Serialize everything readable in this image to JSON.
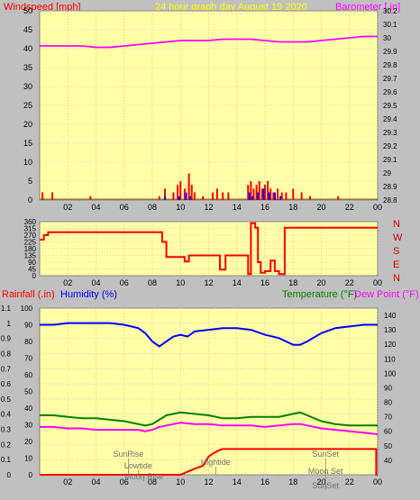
{
  "header": {
    "wind_label": "Windspeed [mph]",
    "title": "24 hour graph day   August 19 2020",
    "baro_label": "Barometer [.in]"
  },
  "dir_labels": [
    "N",
    "W",
    "S",
    "E",
    "N"
  ],
  "bottom_header": {
    "rain_label": "Rainfall (.in)",
    "humidity_label": "Humidity (%)",
    "temp_label": "Temperature (°F)",
    "dew_label": "Dew Point (°F)"
  },
  "colors": {
    "panel_bg": "#ffffa8",
    "grid": "#e6a0a0",
    "wind": "#ff0000",
    "gust": "#0000ff",
    "barometer": "#ff00ff",
    "direction": "#ff0000",
    "humidity": "#0000ff",
    "temperature": "#008000",
    "dewpoint": "#ff00ff",
    "rain": "#ff0000",
    "title_yellow": "#ffff00",
    "temp_green": "#008000"
  },
  "chart_data": [
    {
      "type": "line",
      "title": "24 hour graph day   August 19 2020",
      "x_ticks": [
        "02",
        "04",
        "06",
        "08",
        "10",
        "12",
        "14",
        "16",
        "18",
        "20",
        "22",
        "00"
      ],
      "y_left": {
        "label": "Windspeed [mph]",
        "lim": [
          0,
          50
        ],
        "ticks": [
          0,
          5,
          10,
          15,
          20,
          25,
          30,
          35,
          40,
          45,
          50
        ]
      },
      "y_right": {
        "label": "Barometer [.in]",
        "lim": [
          28.8,
          30.2
        ],
        "ticks": [
          "28.8",
          "28.9",
          "29",
          "29.1",
          "29.2",
          "29.3",
          "29.4",
          "29.5",
          "29.6",
          "29.7",
          "29.8",
          "29.9",
          "30",
          "30.1",
          "30.2"
        ]
      },
      "series": [
        {
          "name": "Barometer [.in]",
          "axis": "right",
          "x": [
            0,
            1,
            2,
            3,
            4,
            5,
            6,
            7,
            8,
            9,
            10,
            11,
            12,
            13,
            14,
            15,
            16,
            17,
            18,
            19,
            20,
            21,
            22,
            23,
            24
          ],
          "values": [
            29.94,
            29.94,
            29.94,
            29.94,
            29.93,
            29.93,
            29.94,
            29.95,
            29.96,
            29.97,
            29.98,
            29.98,
            29.98,
            29.99,
            29.99,
            29.99,
            29.98,
            29.97,
            29.97,
            29.97,
            29.98,
            29.99,
            30.0,
            30.01,
            30.01
          ]
        },
        {
          "name": "Windspeed [mph]",
          "axis": "left",
          "style": "bars",
          "x": [
            0.2,
            0.9,
            3.6,
            8.5,
            8.9,
            9.5,
            9.8,
            10.0,
            10.3,
            10.6,
            10.8,
            11.0,
            11.6,
            12.3,
            12.6,
            13.0,
            13.4,
            14.8,
            15.0,
            15.2,
            15.4,
            15.6,
            15.8,
            16.0,
            16.2,
            16.4,
            16.6,
            16.9,
            17.2,
            17.5,
            18.0,
            18.6,
            19.2,
            21.2
          ],
          "values": [
            2,
            2,
            1,
            1,
            3,
            2,
            4,
            5,
            3,
            7,
            4,
            2,
            1,
            2,
            3,
            2,
            2,
            4,
            5,
            3,
            4,
            5,
            3,
            4,
            5,
            3,
            2,
            3,
            2,
            2,
            3,
            2,
            1,
            1
          ]
        },
        {
          "name": "Gust",
          "axis": "left",
          "style": "bars",
          "x": [
            8.9,
            9.9,
            10.4,
            10.7,
            14.9,
            15.1,
            15.5,
            15.9,
            16.3,
            16.7,
            17.1
          ],
          "values": [
            1,
            1,
            2,
            1,
            2,
            1,
            2,
            3,
            2,
            2,
            1
          ]
        }
      ]
    },
    {
      "type": "line",
      "x_ticks": [
        "02",
        "04",
        "06",
        "08",
        "10",
        "12",
        "14",
        "16",
        "18",
        "20",
        "22",
        "00"
      ],
      "y_left": {
        "label": "",
        "lim": [
          0,
          360
        ],
        "ticks": [
          0,
          45,
          90,
          135,
          180,
          225,
          270,
          315,
          360
        ]
      },
      "series": [
        {
          "name": "Wind direction",
          "x": [
            0.0,
            0.3,
            0.3,
            0.6,
            0.6,
            8.7,
            8.7,
            9.0,
            9.0,
            10.3,
            10.3,
            10.6,
            10.6,
            12.8,
            12.8,
            13.2,
            13.2,
            14.8,
            14.8,
            15.0,
            15.0,
            15.3,
            15.3,
            15.5,
            15.5,
            15.7,
            15.7,
            16.0,
            16.0,
            16.4,
            16.4,
            16.7,
            16.7,
            17.0,
            17.0,
            17.4,
            17.4,
            24.0
          ],
          "values": [
            240,
            240,
            270,
            270,
            290,
            290,
            225,
            225,
            125,
            125,
            95,
            95,
            135,
            135,
            40,
            40,
            135,
            135,
            10,
            10,
            350,
            350,
            320,
            320,
            90,
            90,
            20,
            20,
            30,
            30,
            100,
            100,
            30,
            30,
            10,
            10,
            320,
            320
          ]
        }
      ]
    },
    {
      "type": "line",
      "x_ticks": [
        "02",
        "04",
        "06",
        "08",
        "10",
        "12",
        "14",
        "16",
        "18",
        "20",
        "22",
        "00"
      ],
      "y_left_outer": {
        "label": "Rainfall (.in)",
        "lim": [
          0,
          1.1
        ],
        "ticks": [
          "0",
          "0.1",
          "0.2",
          "0.3",
          "0.4",
          "0.5",
          "0.6",
          "0.7",
          "0.8",
          "0.9",
          "1",
          "1.1"
        ]
      },
      "y_left_inner": {
        "label": "Humidity (%)",
        "lim": [
          0,
          100
        ],
        "ticks": [
          0,
          10,
          20,
          30,
          40,
          50,
          60,
          70,
          80,
          90,
          100
        ]
      },
      "y_right": {
        "label": "Temperature (°F)",
        "lim": [
          30,
          145
        ],
        "ticks": [
          40,
          50,
          60,
          70,
          80,
          90,
          100,
          110,
          120,
          130,
          140
        ]
      },
      "series": [
        {
          "name": "Humidity (%)",
          "axis": "inner",
          "x": [
            0,
            1,
            2,
            3,
            4,
            5,
            6,
            7,
            7.5,
            8,
            8.5,
            9,
            9.5,
            10,
            10.5,
            11,
            12,
            13,
            14,
            15,
            16,
            17,
            17.5,
            18,
            18.5,
            19,
            20,
            21,
            22,
            23,
            24
          ],
          "values": [
            90,
            90,
            91,
            91,
            91,
            91,
            90,
            88,
            85,
            80,
            77,
            80,
            83,
            84,
            83,
            86,
            87,
            88,
            88,
            87,
            84,
            82,
            80,
            78,
            78,
            80,
            85,
            88,
            89,
            90,
            90
          ]
        },
        {
          "name": "Temperature (°F)",
          "axis": "right",
          "x": [
            0,
            1,
            2,
            3,
            4,
            5,
            6,
            7,
            7.5,
            8,
            8.5,
            9,
            10,
            11,
            12,
            13,
            14,
            15,
            16,
            17,
            18,
            18.5,
            19,
            20,
            21,
            22,
            23,
            24
          ],
          "values": [
            71,
            71,
            70,
            69,
            69,
            68,
            67,
            65,
            64,
            65,
            68,
            71,
            73,
            72,
            71,
            69,
            69,
            70,
            70,
            70,
            72,
            73,
            71,
            67,
            65,
            64,
            64,
            64
          ]
        },
        {
          "name": "Dew Point (°F)",
          "axis": "right",
          "x": [
            0,
            1,
            2,
            3,
            4,
            5,
            6,
            7,
            7.5,
            8,
            8.5,
            9,
            10,
            11,
            12,
            13,
            14,
            15,
            16,
            17,
            18,
            18.5,
            19,
            20,
            21,
            22,
            23,
            24
          ],
          "values": [
            63,
            63,
            62,
            62,
            61,
            61,
            61,
            61,
            60,
            61,
            63,
            64,
            66,
            65,
            65,
            64,
            64,
            64,
            63,
            64,
            65,
            65,
            64,
            62,
            61,
            60,
            59,
            58
          ]
        },
        {
          "name": "Rainfall (.in)",
          "axis": "outer",
          "x": [
            0,
            10.0,
            10.5,
            11.0,
            11.6,
            12.0,
            12.3,
            12.7,
            13.0,
            14.0,
            16.0,
            18.0,
            20.0,
            22.0,
            23.9,
            23.9,
            24
          ],
          "values": [
            0,
            0,
            0.02,
            0.04,
            0.06,
            0.12,
            0.14,
            0.16,
            0.17,
            0.17,
            0.17,
            0.17,
            0.17,
            0.17,
            0.17,
            0,
            0
          ]
        }
      ],
      "annotations": [
        {
          "text": "SunRise",
          "x": 6.3
        },
        {
          "text": "Lowtide",
          "x": 7.0
        },
        {
          "text": "Moon Rise",
          "x": 7.4
        },
        {
          "text": "Hightide",
          "x": 12.5
        },
        {
          "text": "SunSet",
          "x": 20.3
        },
        {
          "text": "Moon Set",
          "x": 20.3
        },
        {
          "text": "SunSet",
          "x": 20.3
        }
      ]
    }
  ]
}
